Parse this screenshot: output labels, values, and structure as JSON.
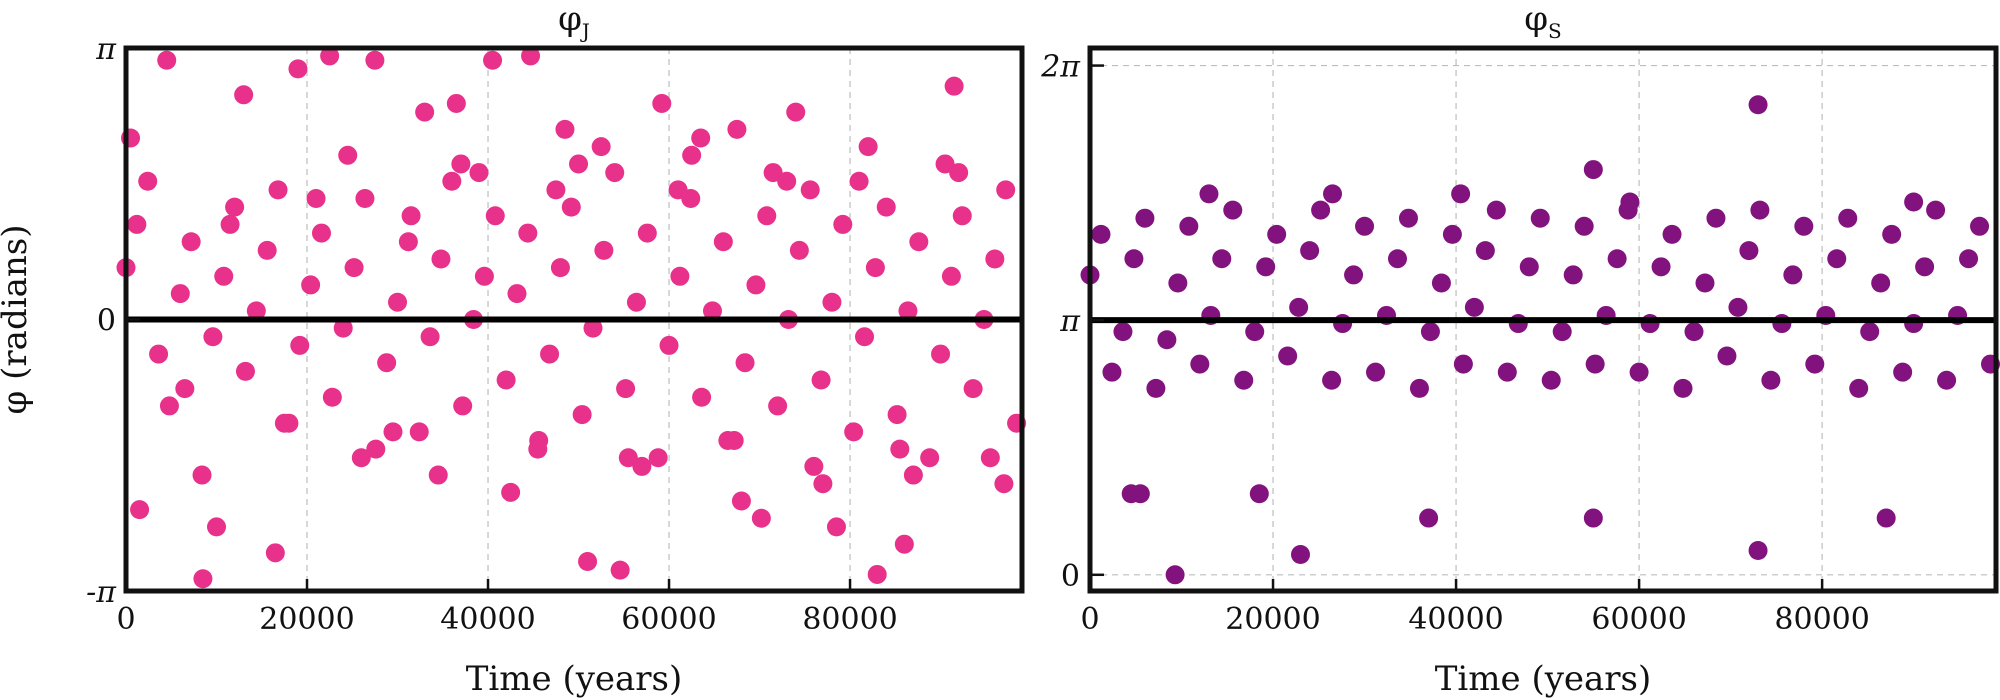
{
  "chart_data": [
    {
      "type": "scatter",
      "title": "φJ",
      "title_main": "φ",
      "title_sub": "J",
      "xlabel": "Time (years)",
      "ylabel": "φ (radians)",
      "xlim": [
        0,
        99000
      ],
      "ylim": [
        -3.1416,
        3.1416
      ],
      "xticks": [
        0,
        20000,
        40000,
        60000,
        80000
      ],
      "xtick_labels": [
        "0",
        "20000",
        "40000",
        "60000",
        "80000"
      ],
      "yticks": [
        -3.1416,
        0,
        3.1416
      ],
      "ytick_labels": [
        "-π",
        "0",
        "π"
      ],
      "hline": 0,
      "grid": "x-only, dashed",
      "color": "#e8318a",
      "note": "Dense sampling of resonant angle; points drift upward in diagonal streaks, mostly within ±2 rad, with occasional excursions to ±π.",
      "series": [
        {
          "x": [
            0,
            1200,
            2400,
            3600,
            4800,
            6000,
            7200,
            8400,
            9600,
            10800,
            12000,
            13200,
            14400,
            15600,
            16800,
            18000,
            19200,
            20400,
            21600,
            22800,
            24000,
            25200,
            26400,
            27600,
            28800,
            30000,
            31200,
            32400,
            33600,
            34800,
            36000,
            37200,
            38400,
            39600,
            40800,
            42000,
            43200,
            44400,
            45600,
            46800,
            48000,
            49200,
            50400,
            51600,
            52800,
            54000,
            55200,
            56400,
            57600,
            58800,
            60000,
            61200,
            62400,
            63600,
            64800,
            66000,
            67200,
            68400,
            69600,
            70800,
            72000,
            73200,
            74400,
            75600,
            76800,
            78000,
            79200,
            80400,
            81600,
            82800,
            84000,
            85200,
            86400,
            87600,
            88800,
            90000,
            91200,
            92400,
            93600,
            94800,
            96000,
            97200,
            98400,
            4500,
            8500,
            13000,
            19000,
            22500,
            27500,
            33000,
            36500,
            40500,
            44700,
            48500,
            51000,
            54600,
            59200,
            63500,
            67500,
            70200,
            74000,
            78500,
            83000,
            86000,
            91500,
            1500,
            10000,
            16500,
            21000,
            26000,
            31500,
            37000,
            42500,
            47500,
            52500,
            57000,
            62500,
            68000,
            73000,
            77000,
            82000,
            87000,
            92000,
            97000,
            500,
            6500,
            11500,
            17500,
            24500,
            29500,
            34500,
            39000,
            45500,
            50000,
            55500,
            61000,
            66500,
            71500,
            76000,
            81000,
            85500,
            90500,
            95500
          ],
          "y": [
            0.6,
            1.1,
            1.6,
            -0.4,
            -1.0,
            0.3,
            0.9,
            -1.8,
            -0.2,
            0.5,
            1.3,
            -0.6,
            0.1,
            0.8,
            1.5,
            -1.2,
            -0.3,
            0.4,
            1.0,
            -0.9,
            -0.1,
            0.6,
            1.4,
            -1.5,
            -0.5,
            0.2,
            0.9,
            -1.3,
            -0.2,
            0.7,
            1.6,
            -1.0,
            0.0,
            0.5,
            1.2,
            -0.7,
            0.3,
            1.0,
            -1.4,
            -0.4,
            0.6,
            1.3,
            -1.1,
            -0.1,
            0.8,
            1.7,
            -0.8,
            0.2,
            1.0,
            -1.6,
            -0.3,
            0.5,
            1.4,
            -0.9,
            0.1,
            0.9,
            -1.4,
            -0.5,
            0.4,
            1.2,
            -1.0,
            0.0,
            0.8,
            1.5,
            -0.7,
            0.2,
            1.1,
            -1.3,
            -0.2,
            0.6,
            1.3,
            -1.1,
            0.1,
            0.9,
            -1.6,
            -0.4,
            0.5,
            1.2,
            -0.8,
            0.0,
            0.7,
            1.5,
            -1.2,
            3.0,
            -3.0,
            2.6,
            2.9,
            3.05,
            3.0,
            2.4,
            2.5,
            3.0,
            3.05,
            2.2,
            -2.8,
            -2.9,
            2.5,
            2.1,
            2.2,
            -2.3,
            2.4,
            -2.4,
            -2.95,
            -2.6,
            2.7,
            -2.2,
            -2.4,
            -2.7,
            1.4,
            -1.6,
            1.2,
            1.8,
            -2.0,
            1.5,
            2.0,
            -1.7,
            1.9,
            -2.1,
            1.6,
            -1.9,
            2.0,
            -1.8,
            1.7,
            -1.9,
            2.1,
            -0.8,
            1.1,
            -1.2,
            1.9,
            -1.3,
            -1.8,
            1.7,
            -1.5,
            1.8,
            -1.6,
            1.5,
            -1.4,
            1.7,
            -1.7,
            1.6,
            -1.5,
            1.8,
            -1.6
          ]
        }
      ]
    },
    {
      "type": "scatter",
      "title": "φS",
      "title_main": "φ",
      "title_sub": "S",
      "xlabel": "Time (years)",
      "ylabel": "",
      "xlim": [
        0,
        99000
      ],
      "ylim": [
        -0.2,
        6.5
      ],
      "xticks": [
        0,
        20000,
        40000,
        60000,
        80000
      ],
      "xtick_labels": [
        "0",
        "20000",
        "40000",
        "60000",
        "80000"
      ],
      "yticks": [
        0,
        3.1416,
        6.2832
      ],
      "ytick_labels": [
        "0",
        "π",
        "2π"
      ],
      "hline": 3.1416,
      "grid": "both, dashed",
      "color": "#82137e",
      "note": "Dense sampling of resonant angle centred on π; diagonal streaks mostly within π ± 1.4 rad, with a few outliers near 0 and 2π.",
      "series": [
        {
          "x": [
            0,
            1200,
            2400,
            3600,
            4800,
            6000,
            7200,
            8400,
            9600,
            10800,
            12000,
            13200,
            14400,
            15600,
            16800,
            18000,
            19200,
            20400,
            21600,
            22800,
            24000,
            25200,
            26400,
            27600,
            28800,
            30000,
            31200,
            32400,
            33600,
            34800,
            36000,
            37200,
            38400,
            39600,
            40800,
            42000,
            43200,
            44400,
            45600,
            46800,
            48000,
            49200,
            50400,
            51600,
            52800,
            54000,
            55200,
            56400,
            57600,
            58800,
            60000,
            61200,
            62400,
            63600,
            64800,
            66000,
            67200,
            68400,
            69600,
            70800,
            72000,
            73200,
            74400,
            75600,
            76800,
            78000,
            79200,
            80400,
            81600,
            82800,
            84000,
            85200,
            86400,
            87600,
            88800,
            90000,
            91200,
            92400,
            93600,
            94800,
            96000,
            97200,
            98400,
            13000,
            26500,
            40500,
            55000,
            59000,
            73000,
            90000,
            4500,
            9300,
            23000,
            55000,
            73000,
            87000,
            37000,
            5500,
            18500
          ],
          "y": [
            3.7,
            4.2,
            2.5,
            3.0,
            3.9,
            4.4,
            2.3,
            2.9,
            3.6,
            4.3,
            2.6,
            3.2,
            3.9,
            4.5,
            2.4,
            3.0,
            3.8,
            4.2,
            2.7,
            3.3,
            4.0,
            4.5,
            2.4,
            3.1,
            3.7,
            4.3,
            2.5,
            3.2,
            3.9,
            4.4,
            2.3,
            3.0,
            3.6,
            4.2,
            2.6,
            3.3,
            4.0,
            4.5,
            2.5,
            3.1,
            3.8,
            4.4,
            2.4,
            3.0,
            3.7,
            4.3,
            2.6,
            3.2,
            3.9,
            4.5,
            2.5,
            3.1,
            3.8,
            4.2,
            2.3,
            3.0,
            3.6,
            4.4,
            2.7,
            3.3,
            4.0,
            4.5,
            2.4,
            3.1,
            3.7,
            4.3,
            2.6,
            3.2,
            3.9,
            4.4,
            2.3,
            3.0,
            3.6,
            4.2,
            2.5,
            3.1,
            3.8,
            4.5,
            2.4,
            3.2,
            3.9,
            4.3,
            2.6,
            4.7,
            4.7,
            4.7,
            5.0,
            4.6,
            5.8,
            4.6,
            1.0,
            0.0,
            0.25,
            0.7,
            0.3,
            0.7,
            0.7,
            1.0,
            1.0
          ]
        }
      ]
    }
  ]
}
